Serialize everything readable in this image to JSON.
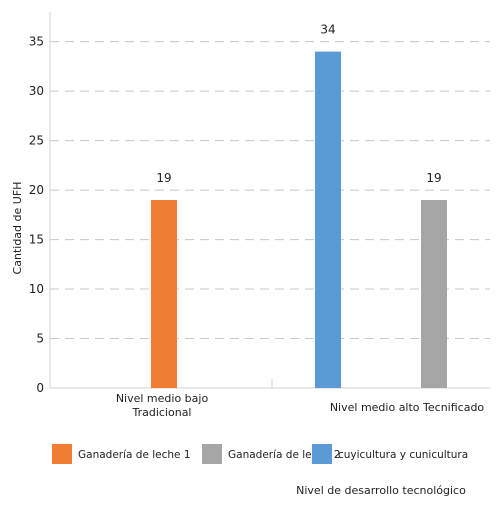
{
  "chart_data": {
    "type": "bar",
    "ylabel": "Cantidad de UFH",
    "xlabel": "Nivel de desarrollo tecnológico",
    "ylim": [
      0,
      38
    ],
    "yticks": [
      0,
      5,
      10,
      15,
      20,
      25,
      30,
      35
    ],
    "grid": true,
    "legend_position": "bottom",
    "groups": [
      {
        "label": [
          "Nivel medio bajo",
          "Tradicional"
        ],
        "bars": [
          {
            "series": "Ganadería de leche 1",
            "value": 19
          }
        ]
      },
      {
        "label": [
          "Nivel medio alto Tecnificado"
        ],
        "bars": [
          {
            "series": "cuyicultura y cunicultura",
            "value": 34
          },
          {
            "series": "Ganadería de leche  2",
            "value": 19
          }
        ]
      }
    ],
    "series": [
      {
        "name": "Ganadería de leche 1",
        "color": "#F07F33"
      },
      {
        "name": "Ganadería de leche  2",
        "color": "#A5A5A5"
      },
      {
        "name": "cuyicultura y cunicultura",
        "color": "#5B9BD5"
      }
    ]
  }
}
